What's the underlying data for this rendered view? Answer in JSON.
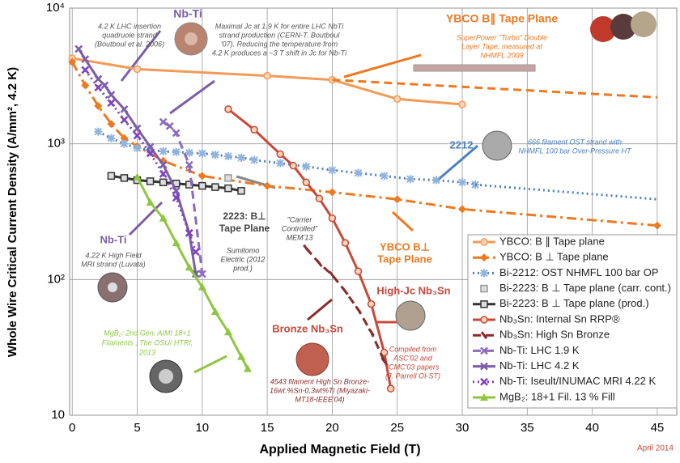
{
  "chart_data": {
    "type": "line",
    "log_y": true,
    "grid": true,
    "x_label": "Applied Magnetic Field (T)",
    "y_label": "Whole Wire Critical Current Density (A/mm², 4.2 K)",
    "date_note": "April 2014",
    "xlim": [
      -0.2,
      46.5
    ],
    "xticks": [
      0,
      5,
      10,
      15,
      20,
      25,
      30,
      35,
      40,
      45
    ],
    "ylim": [
      10,
      10000
    ],
    "yticks": [
      10,
      {
        "value": 100,
        "label": "10²"
      },
      {
        "value": 1000,
        "label": "10³"
      },
      {
        "value": 10000,
        "label": "10⁴"
      }
    ],
    "legend": "bottom-right",
    "series": [
      {
        "name": "YBCO: B ∥ Tape plane",
        "color": "#f29a58",
        "marker": "circle",
        "dash": "solid",
        "x": [
          0,
          5,
          15,
          20,
          25,
          30
        ],
        "values": [
          4270,
          3550,
          3170,
          2960,
          2140,
          1950
        ]
      },
      {
        "name": "YBCO: B ⊥ Tape plane",
        "color": "#ec7a22",
        "marker": "diamond",
        "dash": "dashdot",
        "x": [
          0,
          1,
          2,
          3,
          4,
          5,
          7,
          10,
          15,
          20,
          25,
          30,
          45
        ],
        "values": [
          4000,
          2700,
          1900,
          1400,
          1100,
          960,
          750,
          580,
          490,
          440,
          390,
          330,
          250
        ]
      },
      {
        "name": "Bi-2212: OST NHMFL 100 bar OP",
        "color": "#4a7fc1",
        "marker": "star",
        "dash": "dot",
        "x": [
          2,
          3,
          4,
          5,
          6,
          7,
          8,
          9,
          10,
          11,
          12,
          13,
          14,
          16,
          18,
          20,
          22,
          24,
          26,
          28,
          30,
          31
        ],
        "values": [
          1230,
          1100,
          1000,
          930,
          900,
          880,
          870,
          860,
          850,
          830,
          810,
          790,
          760,
          720,
          680,
          640,
          610,
          580,
          550,
          540,
          520,
          500
        ]
      },
      {
        "name": "Bi-2223: B ⊥ Tape plane (carr. cont.)",
        "color": "#9a9a9a",
        "marker": "square",
        "dash": "none",
        "x": [
          12
        ],
        "values": [
          560
        ]
      },
      {
        "name": "Bi-2223: B ⊥ Tape plane (prod.)",
        "color": "#333333",
        "marker": "square",
        "dash": "solid",
        "x": [
          3,
          4,
          5,
          6,
          7,
          8,
          9,
          10,
          11,
          12,
          13
        ],
        "values": [
          580,
          560,
          540,
          530,
          520,
          510,
          500,
          490,
          480,
          470,
          450
        ]
      },
      {
        "name": "Nb₃Sn: Internal Sn RRP®",
        "color": "#c9483a",
        "marker": "circle",
        "dash": "solid",
        "x": [
          12,
          14,
          16,
          17,
          18,
          19,
          20,
          21,
          22,
          23,
          24,
          24.5
        ],
        "values": [
          1800,
          1270,
          840,
          690,
          520,
          395,
          283,
          186,
          115,
          66,
          29,
          15.7
        ]
      },
      {
        "name": "Nb₃Sn: High Sn Bronze",
        "color": "#8b2a2a",
        "marker": "dash",
        "dash": "dash",
        "x": [
          18,
          19,
          20,
          21,
          22,
          23,
          24
        ],
        "values": [
          170,
          132,
          108,
          82,
          60,
          41,
          25
        ]
      },
      {
        "name": "Nb-Ti: LHC 1.9 K",
        "color": "#8a6bbd",
        "marker": "x",
        "dash": "dash",
        "x": [
          7,
          7.5,
          8,
          9,
          10
        ],
        "values": [
          1450,
          1350,
          1200,
          700,
          110
        ]
      },
      {
        "name": "Nb-Ti: LHC 4.2 K",
        "color": "#7b5ea7",
        "marker": "x",
        "dash": "solid",
        "x": [
          0.5,
          1,
          2,
          2.5,
          3,
          4,
          5,
          6,
          7,
          8,
          9,
          9.5
        ],
        "values": [
          5000,
          4200,
          3000,
          2700,
          2300,
          1800,
          1300,
          950,
          700,
          450,
          220,
          110
        ]
      },
      {
        "name": "Nb-Ti: Iseult/INUMAC MRI 4.22 K",
        "color": "#7f3fbf",
        "marker": "x",
        "dash": "dot",
        "x": [
          1,
          2,
          3,
          4,
          5,
          6,
          7,
          8,
          9,
          9.5
        ],
        "values": [
          3500,
          2600,
          2000,
          1500,
          1150,
          850,
          600,
          400,
          220,
          160
        ]
      },
      {
        "name": "MgB₂: 18+1 Fil. 13 % Fill",
        "color": "#8dc63f",
        "marker": "triangle",
        "dash": "solid",
        "x": [
          5,
          6,
          7,
          8,
          9,
          10,
          11,
          12,
          13,
          13.5
        ],
        "values": [
          570,
          370,
          283,
          186,
          123,
          88,
          58,
          41,
          27,
          22
        ]
      },
      {
        "color": "#ec7a22",
        "marker": "none",
        "dash": "dash",
        "x": [
          20,
          45
        ],
        "values": [
          2960,
          2200
        ]
      },
      {
        "color": "#4a7fc1",
        "marker": "none",
        "dash": "dot",
        "x": [
          31,
          45
        ],
        "values": [
          500,
          390
        ]
      }
    ],
    "annotations": [
      {
        "lines": [
          "Nb-Ti"
        ]
      },
      {
        "lines": [
          "4.2 K LHC insertion",
          "quadruole strand",
          "(Boutboul et al. 2006)"
        ]
      },
      {
        "lines": [
          "Maximal Jc at 1.9 K for entire LHC NbTi",
          "strand production (CERN-T. Boutboul",
          "'07). Reducing the temperature from",
          "4.2 K produces a ~3 T shift in Jc for Nb-Ti"
        ]
      },
      {
        "lines": [
          "YBCO B∥ Tape Plane"
        ]
      },
      {
        "lines": [
          "SuperPower \"Turbo\" Double",
          "Layer Tape, measured at",
          "NHMFL 2009"
        ]
      },
      {
        "lines": [
          "2212"
        ]
      },
      {
        "lines": [
          "666 filament OST strand with",
          "NHMFL 100 bar Over-Pressure HT"
        ]
      },
      {
        "lines": [
          "2223: B⊥",
          "Tape Plane"
        ]
      },
      {
        "lines": [
          "Sumitomo",
          "Electric (2012",
          "prod.)"
        ]
      },
      {
        "lines": [
          "\"Carrier",
          "Controlled\"",
          "MEM'13"
        ]
      },
      {
        "lines": [
          "YBCO B⊥",
          "Tape Plane"
        ]
      },
      {
        "lines": [
          "Nb-Ti"
        ]
      },
      {
        "lines": [
          "4.22 K High Field",
          "MRI strand (Luvata)"
        ]
      },
      {
        "lines": [
          "High-Jc Nb₃Sn"
        ]
      },
      {
        "lines": [
          "Bronze Nb₃Sn"
        ]
      },
      {
        "lines": [
          "Compiled from",
          "ASC'02 and",
          "ICMC'03 papers",
          "(J. Parrell OI-ST)"
        ]
      },
      {
        "lines": [
          "MgB₂: 2nd Gen. AIMI 18+1",
          "Filaments , The OSU/ HTRI,",
          "2013"
        ]
      },
      {
        "lines": [
          "4543 filament High Sn Bronze-",
          "16wt.%Sn-0.3wt%Ti (Miyazaki-",
          "MT18-IEEE'04)"
        ]
      }
    ]
  }
}
